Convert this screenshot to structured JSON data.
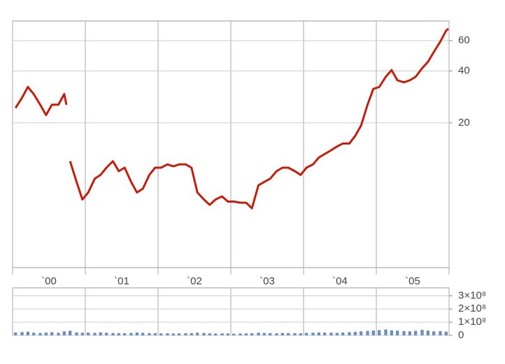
{
  "chart_data": [
    {
      "type": "line",
      "log_scale": true,
      "grid": true,
      "xlim": [
        2000,
        2006
      ],
      "ylim": [
        2.9,
        78
      ],
      "yticks": [
        20,
        40,
        60
      ],
      "xgrid": [
        2000,
        2001,
        2002,
        2003,
        2004,
        2005,
        2006
      ],
      "xticks": [
        {
          "value": 2000.5,
          "label": "`00"
        },
        {
          "value": 2001.5,
          "label": "`01"
        },
        {
          "value": 2002.5,
          "label": "`02"
        },
        {
          "value": 2003.5,
          "label": "`03"
        },
        {
          "value": 2004.5,
          "label": "`04"
        },
        {
          "value": 2005.5,
          "label": "`05"
        }
      ],
      "series": [
        {
          "color": "#c41e0a",
          "x": [
            2000.04,
            2000.13,
            2000.21,
            2000.29,
            2000.38,
            2000.46,
            2000.54,
            2000.63,
            2000.71,
            2000.74,
            2000.76,
            2000.79,
            2000.88,
            2000.96,
            2001.04,
            2001.13,
            2001.21,
            2001.29,
            2001.38,
            2001.46,
            2001.54,
            2001.63,
            2001.71,
            2001.79,
            2001.88,
            2001.96,
            2002.04,
            2002.13,
            2002.21,
            2002.29,
            2002.38,
            2002.46,
            2002.54,
            2002.63,
            2002.71,
            2002.79,
            2002.88,
            2002.96,
            2003.04,
            2003.13,
            2003.21,
            2003.29,
            2003.38,
            2003.46,
            2003.54,
            2003.63,
            2003.71,
            2003.79,
            2003.88,
            2003.96,
            2004.04,
            2004.13,
            2004.21,
            2004.29,
            2004.38,
            2004.46,
            2004.54,
            2004.63,
            2004.71,
            2004.79,
            2004.88,
            2004.96,
            2005.04,
            2005.13,
            2005.21,
            2005.29,
            2005.38,
            2005.46,
            2005.54,
            2005.63,
            2005.71,
            2005.79,
            2005.88,
            2005.96,
            2005.99
          ],
          "values": [
            24.4,
            28.0,
            32.3,
            29.4,
            25.5,
            22.2,
            25.5,
            25.5,
            29.4,
            25.5,
            null,
            12.0,
            9.1,
            7.2,
            7.9,
            9.5,
            10.0,
            11.0,
            12.0,
            10.5,
            11.0,
            9.1,
            7.9,
            8.3,
            10.0,
            11.0,
            11.0,
            11.5,
            11.2,
            11.5,
            11.5,
            11.0,
            7.9,
            7.2,
            6.7,
            7.2,
            7.5,
            7.0,
            7.0,
            6.9,
            6.9,
            6.4,
            8.7,
            9.1,
            9.5,
            10.5,
            11.0,
            11.0,
            10.5,
            10.0,
            11.0,
            11.5,
            12.6,
            13.2,
            13.9,
            14.6,
            15.2,
            15.2,
            16.8,
            19.3,
            25.5,
            31.5,
            32.3,
            37.0,
            40.5,
            35.3,
            34.4,
            35.3,
            37.0,
            41.5,
            45.1,
            51.5,
            59.2,
            68.5,
            70.3
          ]
        }
      ]
    },
    {
      "type": "bar",
      "grid": true,
      "xlim": [
        2000,
        2006
      ],
      "ylim": [
        0,
        360000000
      ],
      "xgrid": [
        2000,
        2001,
        2002,
        2003,
        2004,
        2005,
        2006
      ],
      "yticks": [
        {
          "value": 0,
          "label": "0"
        },
        {
          "value": 100000000,
          "label": "1×10⁸"
        },
        {
          "value": 200000000,
          "label": "2×10⁸"
        },
        {
          "value": 300000000,
          "label": "3×10⁸"
        }
      ],
      "series": [
        {
          "color": "#6b8fb8",
          "x": [
            2000.04,
            2000.13,
            2000.21,
            2000.29,
            2000.38,
            2000.46,
            2000.54,
            2000.63,
            2000.71,
            2000.79,
            2000.88,
            2000.96,
            2001.04,
            2001.13,
            2001.21,
            2001.29,
            2001.38,
            2001.46,
            2001.54,
            2001.63,
            2001.71,
            2001.79,
            2001.88,
            2001.96,
            2002.04,
            2002.13,
            2002.21,
            2002.29,
            2002.38,
            2002.46,
            2002.54,
            2002.63,
            2002.71,
            2002.79,
            2002.88,
            2002.96,
            2003.04,
            2003.13,
            2003.21,
            2003.29,
            2003.38,
            2003.46,
            2003.54,
            2003.63,
            2003.71,
            2003.79,
            2003.88,
            2003.96,
            2004.04,
            2004.13,
            2004.21,
            2004.29,
            2004.38,
            2004.46,
            2004.54,
            2004.63,
            2004.71,
            2004.79,
            2004.88,
            2004.96,
            2005.04,
            2005.13,
            2005.21,
            2005.29,
            2005.38,
            2005.46,
            2005.54,
            2005.63,
            2005.71,
            2005.79,
            2005.88,
            2005.96
          ],
          "values": [
            22000000,
            25000000,
            28000000,
            20000000,
            18000000,
            21000000,
            24000000,
            19000000,
            30000000,
            35000000,
            22000000,
            20000000,
            21000000,
            19000000,
            23000000,
            20000000,
            18000000,
            17000000,
            16000000,
            18000000,
            22000000,
            19000000,
            17000000,
            16000000,
            15000000,
            16000000,
            14000000,
            15000000,
            16000000,
            17000000,
            20000000,
            18000000,
            15000000,
            14000000,
            15000000,
            14000000,
            13000000,
            14000000,
            15000000,
            16000000,
            20000000,
            18000000,
            17000000,
            16000000,
            18000000,
            17000000,
            16000000,
            15000000,
            18000000,
            20000000,
            22000000,
            21000000,
            20000000,
            19000000,
            22000000,
            24000000,
            26000000,
            30000000,
            34000000,
            36000000,
            40000000,
            45000000,
            38000000,
            35000000,
            32000000,
            30000000,
            34000000,
            42000000,
            36000000,
            30000000,
            32000000,
            28000000
          ]
        }
      ]
    }
  ]
}
